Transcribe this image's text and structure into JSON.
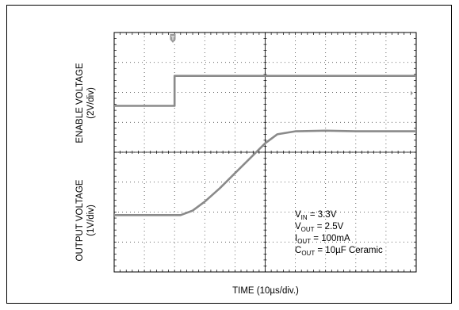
{
  "chart_data": {
    "type": "line",
    "xlabel": "TIME (10µs/div.)",
    "y_upper_label": {
      "line1": "ENABLE VOLTAGE",
      "line2": "(2V/div)"
    },
    "y_lower_label": {
      "line1": "OUTPUT  VOLTAGE",
      "line2": "(1V/div)"
    },
    "x_divisions": 10,
    "y_divisions": 8,
    "grid": "dotted",
    "trigger_marker": "T",
    "trace_color": "#8a8a8a",
    "conditions": [
      {
        "main": "V",
        "sub": "IN",
        "rest": " = 3.3V"
      },
      {
        "main": "V",
        "sub": "OUT",
        "rest": " = 2.5V"
      },
      {
        "main": "I",
        "sub": "OUT",
        "rest": " = 100mA"
      },
      {
        "main": "C",
        "sub": "OUT",
        "rest": " = 10µF Ceramic"
      }
    ],
    "series": [
      {
        "name": "",
        "x_div": [
          0,
          2,
          2,
          10
        ],
        "y_div": [
          5.55,
          5.55,
          6.55,
          6.55
        ]
      },
      {
        "name": "",
        "x_div": [
          0,
          2.2,
          2.6,
          3.0,
          3.5,
          4.0,
          4.5,
          5.0,
          5.4,
          6.0,
          7.0,
          8.0,
          10
        ],
        "y_div": [
          1.9,
          1.9,
          2.05,
          2.35,
          2.8,
          3.3,
          3.8,
          4.3,
          4.6,
          4.7,
          4.72,
          4.7,
          4.7
        ]
      }
    ]
  }
}
